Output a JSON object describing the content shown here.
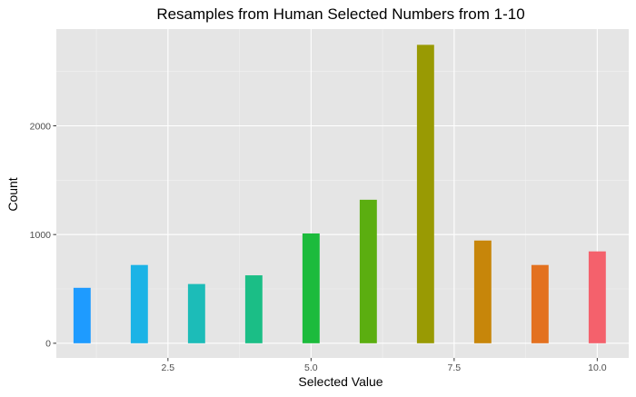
{
  "chart_data": {
    "type": "bar",
    "title": "Resamples from Human Selected Numbers from 1-10",
    "xlabel": "Selected Value",
    "ylabel": "Count",
    "x": [
      1,
      2,
      3,
      4,
      5,
      6,
      7,
      8,
      9,
      10
    ],
    "values": [
      510,
      720,
      545,
      625,
      1010,
      1320,
      2745,
      945,
      720,
      845
    ],
    "colors": [
      "#1E9BFF",
      "#1BB3E6",
      "#1CBCB8",
      "#1BBE86",
      "#1CBB3C",
      "#5BAE10",
      "#999A03",
      "#C7860A",
      "#E3711F",
      "#F4616C"
    ],
    "xlim": [
      0.55,
      10.55
    ],
    "ylim": [
      -135,
      2890
    ],
    "xticks": [
      2.5,
      5.0,
      7.5,
      10.0
    ],
    "xtick_labels": [
      "2.5",
      "5.0",
      "7.5",
      "10.0"
    ],
    "yticks": [
      0,
      1000,
      2000
    ],
    "ytick_labels": [
      "0",
      "1000",
      "2000"
    ],
    "grid": true,
    "legend": "none",
    "background": "#E5E5E5"
  }
}
